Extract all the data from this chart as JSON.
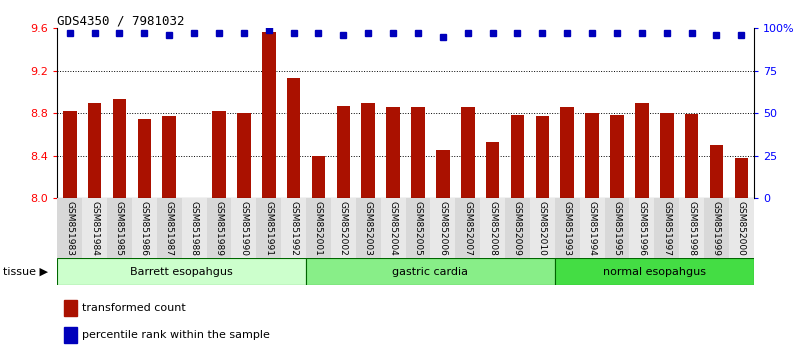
{
  "title": "GDS4350 / 7981032",
  "samples": [
    "GSM851983",
    "GSM851984",
    "GSM851985",
    "GSM851986",
    "GSM851987",
    "GSM851988",
    "GSM851989",
    "GSM851990",
    "GSM851991",
    "GSM851992",
    "GSM852001",
    "GSM852002",
    "GSM852003",
    "GSM852004",
    "GSM852005",
    "GSM852006",
    "GSM852007",
    "GSM852008",
    "GSM852009",
    "GSM852010",
    "GSM851993",
    "GSM851994",
    "GSM851995",
    "GSM851996",
    "GSM851997",
    "GSM851998",
    "GSM851999",
    "GSM852000"
  ],
  "bar_values": [
    8.82,
    8.9,
    8.93,
    8.75,
    8.77,
    8.0,
    8.82,
    8.8,
    9.57,
    9.13,
    8.4,
    8.87,
    8.9,
    8.86,
    8.86,
    8.45,
    8.86,
    8.53,
    8.78,
    8.77,
    8.86,
    8.8,
    8.78,
    8.9,
    8.8,
    8.79,
    8.5,
    8.38
  ],
  "percentile_values": [
    97,
    97,
    97,
    97,
    96,
    97,
    97,
    97,
    99,
    97,
    97,
    96,
    97,
    97,
    97,
    95,
    97,
    97,
    97,
    97,
    97,
    97,
    97,
    97,
    97,
    97,
    96,
    96
  ],
  "groups": [
    {
      "label": "Barrett esopahgus",
      "start": 0,
      "end": 10,
      "color": "#ccffcc"
    },
    {
      "label": "gastric cardia",
      "start": 10,
      "end": 20,
      "color": "#88ee88"
    },
    {
      "label": "normal esopahgus",
      "start": 20,
      "end": 28,
      "color": "#44dd44"
    }
  ],
  "ylim_left": [
    8.0,
    9.6
  ],
  "ylim_right": [
    0,
    100
  ],
  "yticks_left": [
    8.0,
    8.4,
    8.8,
    9.2,
    9.6
  ],
  "yticks_right": [
    0,
    25,
    50,
    75,
    100
  ],
  "ytick_labels_right": [
    "0",
    "25",
    "50",
    "75",
    "100%"
  ],
  "bar_color": "#aa1100",
  "dot_color": "#0000bb",
  "bar_width": 0.55,
  "grid_lines": [
    8.4,
    8.8,
    9.2
  ],
  "tissue_label": "tissue ▶",
  "legend": [
    {
      "label": "transformed count",
      "color": "#aa1100"
    },
    {
      "label": "percentile rank within the sample",
      "color": "#0000bb"
    }
  ]
}
